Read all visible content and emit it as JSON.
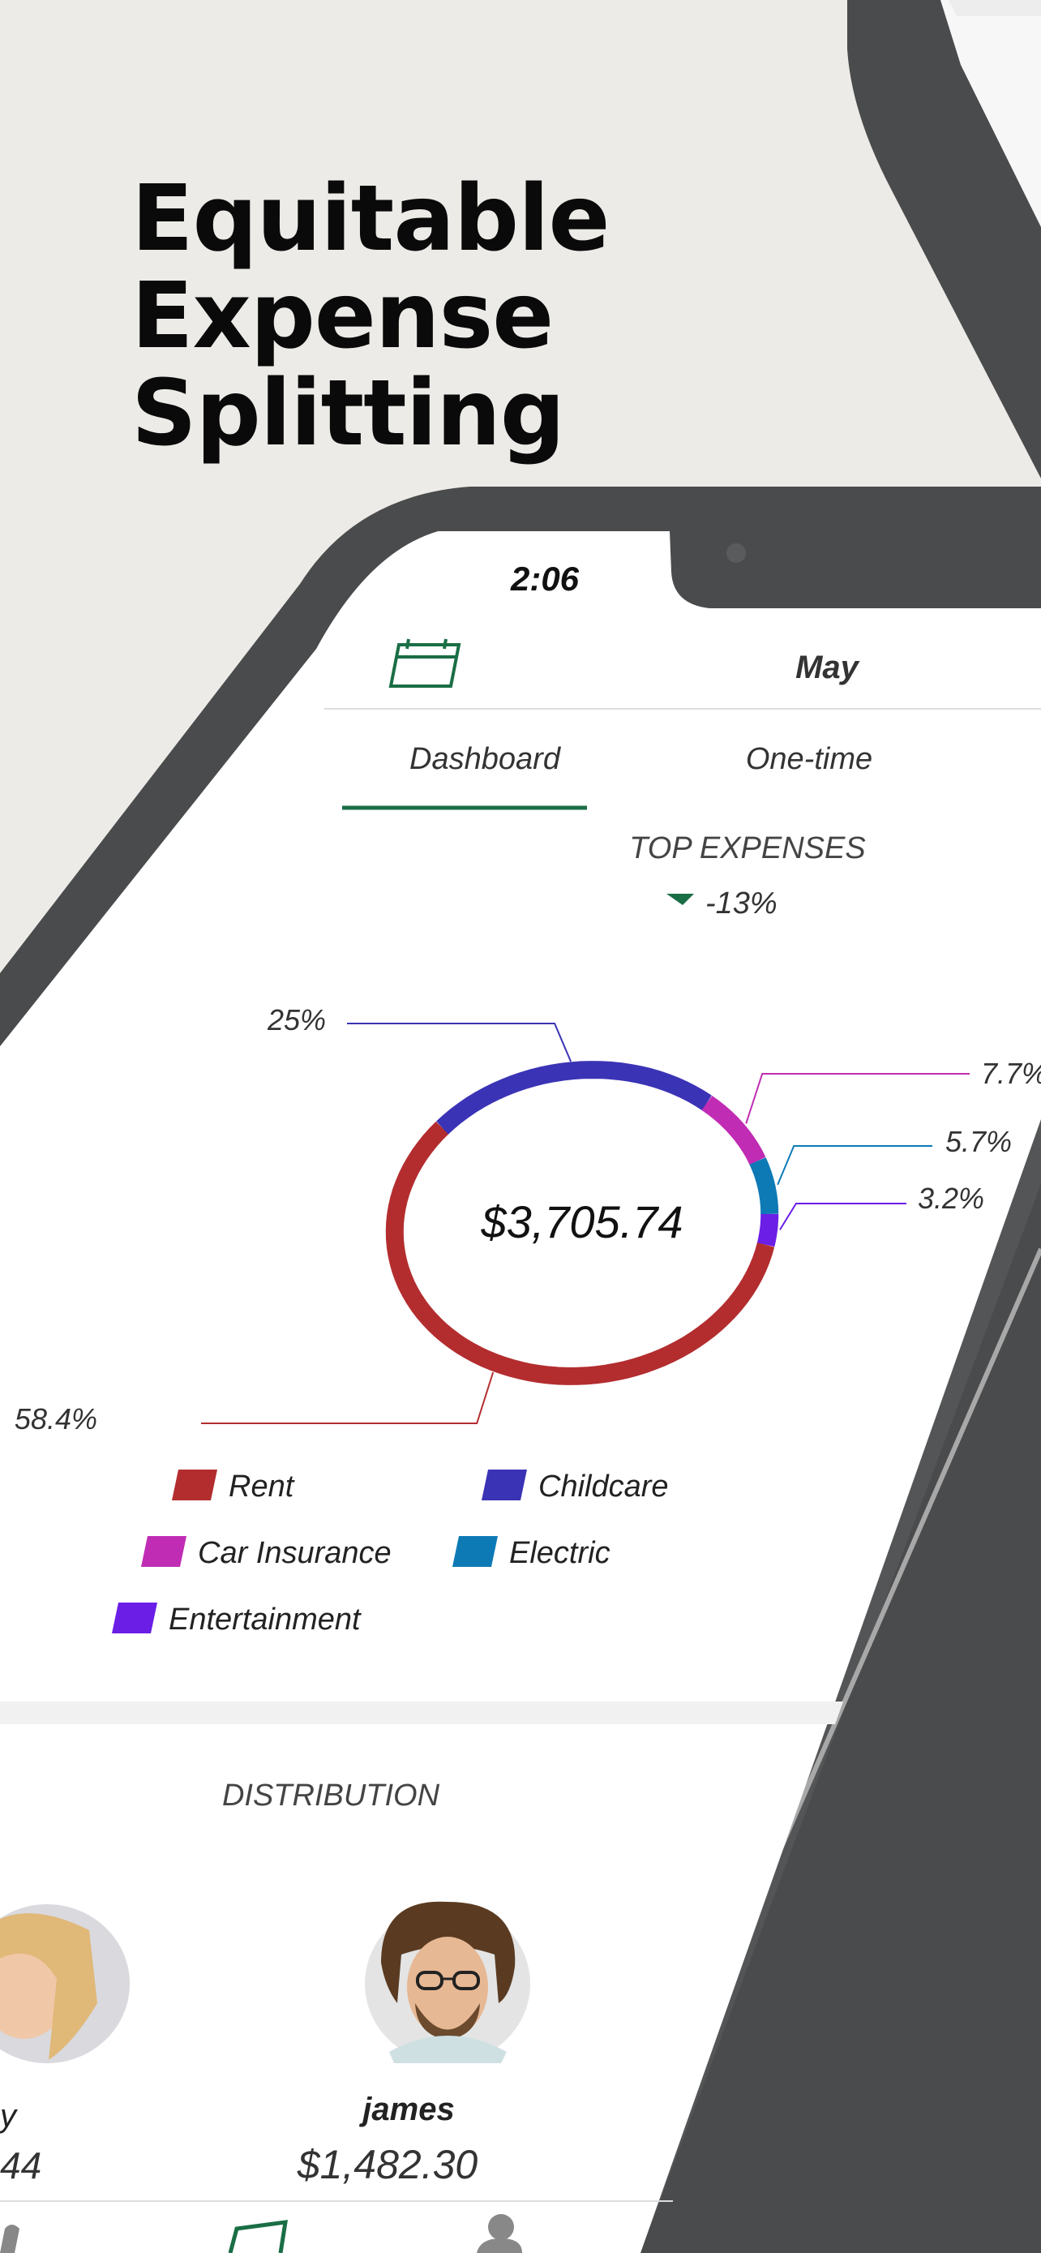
{
  "hero": {
    "lines": [
      "Equitable",
      "Expense",
      "Splitting"
    ]
  },
  "status_bar": {
    "time": "2:06"
  },
  "header": {
    "month": "May"
  },
  "tabs": [
    {
      "label": "Dashboard",
      "active": true
    },
    {
      "label": "One-time",
      "active": false
    }
  ],
  "top_expenses": {
    "title": "TOP EXPENSES",
    "change": "-13%",
    "total": "$3,705.74"
  },
  "chart_data": {
    "type": "pie",
    "title": "TOP EXPENSES",
    "center_label": "$3,705.74",
    "categories": [
      "Rent",
      "Childcare",
      "Car Insurance",
      "Electric",
      "Entertainment"
    ],
    "values": [
      58.4,
      25,
      7.7,
      5.7,
      3.2
    ],
    "value_labels": [
      "58.4%",
      "25%",
      "7.7%",
      "5.7%",
      "3.2%"
    ],
    "colors": [
      "#b32d2f",
      "#3b33b5",
      "#c02cb4",
      "#0e7ab5",
      "#6a1ee6"
    ],
    "legend_placement": "bottom"
  },
  "distribution": {
    "title": "DISTRIBUTION",
    "people": [
      {
        "name": "y",
        "amount": "44"
      },
      {
        "name": "james",
        "amount": "$1,482.30"
      }
    ]
  },
  "colors": {
    "accent": "#1a6e45",
    "phone_frame": "#4a4b4c",
    "background": "#ecebe7"
  },
  "icons": [
    "calendar-icon",
    "home-icon",
    "wallet-icon",
    "profile-icon"
  ]
}
